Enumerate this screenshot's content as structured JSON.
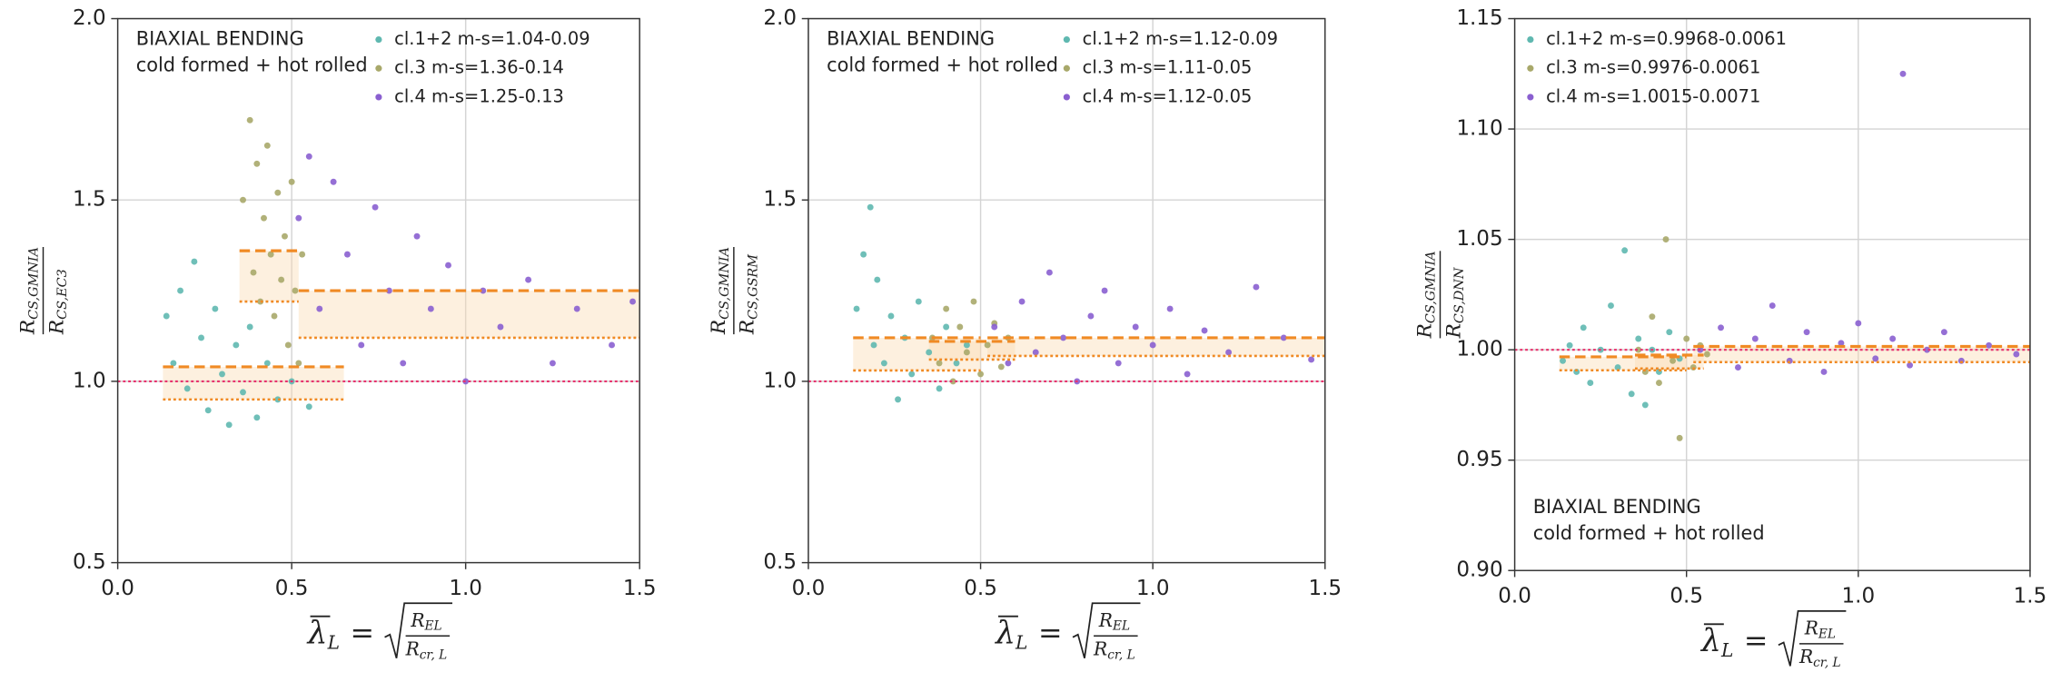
{
  "chart_data": [
    {
      "type": "scatter",
      "grid": true,
      "legend_loc": "upper right",
      "annotation_loc": "upper left",
      "annotation": [
        "BIAXIAL BENDING",
        "cold formed + hot rolled"
      ],
      "ylabel": {
        "num": "R",
        "num_sub": "CS,GMNIA",
        "den": "R",
        "den_sub": "CS,EC3"
      },
      "xlabel": {
        "symbol": "λ",
        "sub": "L",
        "eq": "=",
        "num": "R",
        "num_sub": "EL",
        "den": "R",
        "den_sub": "cr, L"
      },
      "xlim": [
        0,
        1.5
      ],
      "ylim": [
        0.5,
        2.0
      ],
      "xticks": [
        {
          "value": 0,
          "label": "0.0"
        },
        {
          "value": 0.5,
          "label": "0.5"
        },
        {
          "value": 1,
          "label": "1.0"
        },
        {
          "value": 1.5,
          "label": "1.5"
        }
      ],
      "yticks": [
        {
          "value": 0.5,
          "label": "0.5"
        },
        {
          "value": 1,
          "label": "1.0"
        },
        {
          "value": 1.5,
          "label": "1.5"
        },
        {
          "value": 2,
          "label": "2.0"
        }
      ],
      "ref_line": 1.0,
      "ref_color": "#e8336e",
      "mean_color": "#f08a24",
      "series": [
        {
          "name": "cl.1+2 m-s=1.04-0.09",
          "color": "#5fb8b0",
          "mean": 1.04,
          "sd": 0.09,
          "line_x": [
            0.13,
            0.65
          ],
          "x": [
            0.14,
            0.16,
            0.18,
            0.2,
            0.22,
            0.24,
            0.26,
            0.28,
            0.3,
            0.32,
            0.34,
            0.36,
            0.38,
            0.4,
            0.43,
            0.46,
            0.5,
            0.55
          ],
          "values": [
            1.18,
            1.05,
            1.25,
            0.98,
            1.33,
            1.12,
            0.92,
            1.2,
            1.02,
            0.88,
            1.1,
            0.97,
            1.15,
            0.9,
            1.05,
            0.95,
            1.0,
            0.93
          ]
        },
        {
          "name": "cl.3 m-s=1.36-0.14",
          "color": "#a8a86a",
          "mean": 1.36,
          "sd": 0.14,
          "line_x": [
            0.35,
            0.52
          ],
          "x": [
            0.36,
            0.38,
            0.39,
            0.4,
            0.41,
            0.42,
            0.43,
            0.44,
            0.45,
            0.46,
            0.47,
            0.48,
            0.49,
            0.5,
            0.51,
            0.52,
            0.53
          ],
          "values": [
            1.5,
            1.72,
            1.3,
            1.6,
            1.22,
            1.45,
            1.65,
            1.35,
            1.18,
            1.52,
            1.28,
            1.4,
            1.1,
            1.55,
            1.25,
            1.05,
            1.35
          ]
        },
        {
          "name": "cl.4 m-s=1.25-0.13",
          "color": "#8a5fd0",
          "mean": 1.25,
          "sd": 0.13,
          "line_x": [
            0.52,
            1.5
          ],
          "x": [
            0.52,
            0.55,
            0.58,
            0.62,
            0.66,
            0.7,
            0.74,
            0.78,
            0.82,
            0.86,
            0.9,
            0.95,
            1.0,
            1.05,
            1.1,
            1.18,
            1.25,
            1.32,
            1.42,
            1.48
          ],
          "values": [
            1.45,
            1.62,
            1.2,
            1.55,
            1.35,
            1.1,
            1.48,
            1.25,
            1.05,
            1.4,
            1.2,
            1.32,
            1.0,
            1.25,
            1.15,
            1.28,
            1.05,
            1.2,
            1.1,
            1.22
          ]
        }
      ]
    },
    {
      "type": "scatter",
      "grid": true,
      "legend_loc": "upper right",
      "annotation_loc": "upper left",
      "annotation": [
        "BIAXIAL BENDING",
        "cold formed + hot rolled"
      ],
      "ylabel": {
        "num": "R",
        "num_sub": "CS,GMNIA",
        "den": "R",
        "den_sub": "CS,GSRM"
      },
      "xlabel": {
        "symbol": "λ",
        "sub": "L",
        "eq": "=",
        "num": "R",
        "num_sub": "EL",
        "den": "R",
        "den_sub": "cr, L"
      },
      "xlim": [
        0,
        1.5
      ],
      "ylim": [
        0.5,
        2.0
      ],
      "xticks": [
        {
          "value": 0,
          "label": "0.0"
        },
        {
          "value": 0.5,
          "label": "0.5"
        },
        {
          "value": 1,
          "label": "1.0"
        },
        {
          "value": 1.5,
          "label": "1.5"
        }
      ],
      "yticks": [
        {
          "value": 0.5,
          "label": "0.5"
        },
        {
          "value": 1,
          "label": "1.0"
        },
        {
          "value": 1.5,
          "label": "1.5"
        },
        {
          "value": 2,
          "label": "2.0"
        }
      ],
      "ref_line": 1.0,
      "ref_color": "#e8336e",
      "mean_color": "#f08a24",
      "series": [
        {
          "name": "cl.1+2 m-s=1.12-0.09",
          "color": "#5fb8b0",
          "mean": 1.12,
          "sd": 0.09,
          "line_x": [
            0.13,
            0.5
          ],
          "x": [
            0.14,
            0.16,
            0.18,
            0.19,
            0.2,
            0.22,
            0.24,
            0.26,
            0.28,
            0.3,
            0.32,
            0.35,
            0.38,
            0.4,
            0.43,
            0.46
          ],
          "values": [
            1.2,
            1.35,
            1.48,
            1.1,
            1.28,
            1.05,
            1.18,
            0.95,
            1.12,
            1.02,
            1.22,
            1.08,
            0.98,
            1.15,
            1.05,
            1.1
          ]
        },
        {
          "name": "cl.3 m-s=1.11-0.05",
          "color": "#a8a86a",
          "mean": 1.11,
          "sd": 0.05,
          "line_x": [
            0.35,
            0.6
          ],
          "x": [
            0.36,
            0.38,
            0.4,
            0.42,
            0.44,
            0.46,
            0.48,
            0.5,
            0.52,
            0.54,
            0.56,
            0.58
          ],
          "values": [
            1.12,
            1.05,
            1.2,
            1.0,
            1.15,
            1.08,
            1.22,
            1.02,
            1.1,
            1.16,
            1.04,
            1.12
          ]
        },
        {
          "name": "cl.4 m-s=1.12-0.05",
          "color": "#8a5fd0",
          "mean": 1.12,
          "sd": 0.05,
          "line_x": [
            0.52,
            1.5
          ],
          "x": [
            0.54,
            0.58,
            0.62,
            0.66,
            0.7,
            0.74,
            0.78,
            0.82,
            0.86,
            0.9,
            0.95,
            1.0,
            1.05,
            1.1,
            1.15,
            1.22,
            1.3,
            1.38,
            1.46
          ],
          "values": [
            1.15,
            1.05,
            1.22,
            1.08,
            1.3,
            1.12,
            1.0,
            1.18,
            1.25,
            1.05,
            1.15,
            1.1,
            1.2,
            1.02,
            1.14,
            1.08,
            1.26,
            1.12,
            1.06
          ]
        }
      ]
    },
    {
      "type": "scatter",
      "grid": true,
      "legend_loc": "upper left",
      "annotation_loc": "lower left",
      "annotation": [
        "BIAXIAL BENDING",
        "cold formed + hot rolled"
      ],
      "ylabel": {
        "num": "R",
        "num_sub": "CS,GMNIA",
        "den": "R",
        "den_sub": "CS,DNN"
      },
      "xlabel": {
        "symbol": "λ",
        "sub": "L",
        "eq": "=",
        "num": "R",
        "num_sub": "EL",
        "den": "R",
        "den_sub": "cr, L"
      },
      "xlim": [
        0,
        1.5
      ],
      "ylim": [
        0.9,
        1.15
      ],
      "xticks": [
        {
          "value": 0,
          "label": "0.0"
        },
        {
          "value": 0.5,
          "label": "0.5"
        },
        {
          "value": 1,
          "label": "1.0"
        },
        {
          "value": 1.5,
          "label": "1.5"
        }
      ],
      "yticks": [
        {
          "value": 0.9,
          "label": "0.90"
        },
        {
          "value": 0.95,
          "label": "0.95"
        },
        {
          "value": 1,
          "label": "1.00"
        },
        {
          "value": 1.05,
          "label": "1.05"
        },
        {
          "value": 1.1,
          "label": "1.10"
        },
        {
          "value": 1.15,
          "label": "1.15"
        }
      ],
      "ref_line": 1.0,
      "ref_color": "#e8336e",
      "mean_color": "#f08a24",
      "series": [
        {
          "name": "cl.1+2 m-s=0.9968-0.0061",
          "color": "#5fb8b0",
          "mean": 0.9968,
          "sd": 0.0061,
          "line_x": [
            0.13,
            0.5
          ],
          "x": [
            0.14,
            0.16,
            0.18,
            0.2,
            0.22,
            0.25,
            0.28,
            0.3,
            0.32,
            0.34,
            0.36,
            0.38,
            0.4,
            0.42,
            0.45,
            0.48
          ],
          "values": [
            0.995,
            1.002,
            0.99,
            1.01,
            0.985,
            1.0,
            1.02,
            0.992,
            1.045,
            0.98,
            1.005,
            0.975,
            1.0,
            0.99,
            1.008,
            0.996
          ]
        },
        {
          "name": "cl.3 m-s=0.9976-0.0061",
          "color": "#a8a86a",
          "mean": 0.9976,
          "sd": 0.0061,
          "line_x": [
            0.35,
            0.55
          ],
          "x": [
            0.36,
            0.38,
            0.4,
            0.42,
            0.44,
            0.46,
            0.48,
            0.5,
            0.52,
            0.54,
            0.56
          ],
          "values": [
            1.0,
            0.99,
            1.015,
            0.985,
            1.05,
            0.995,
            0.96,
            1.005,
            0.992,
            1.002,
            0.998
          ]
        },
        {
          "name": "cl.4 m-s=1.0015-0.0071",
          "color": "#8a5fd0",
          "mean": 1.0015,
          "sd": 0.0071,
          "line_x": [
            0.52,
            1.5
          ],
          "x": [
            0.54,
            0.6,
            0.65,
            0.7,
            0.75,
            0.8,
            0.85,
            0.9,
            0.95,
            1.0,
            1.05,
            1.1,
            1.15,
            1.2,
            1.25,
            1.3,
            1.38,
            1.46,
            1.13
          ],
          "values": [
            1.0,
            1.01,
            0.992,
            1.005,
            1.02,
            0.995,
            1.008,
            0.99,
            1.003,
            1.012,
            0.996,
            1.005,
            0.993,
            1.0,
            1.008,
            0.995,
            1.002,
            0.998,
            1.125
          ]
        }
      ]
    }
  ]
}
